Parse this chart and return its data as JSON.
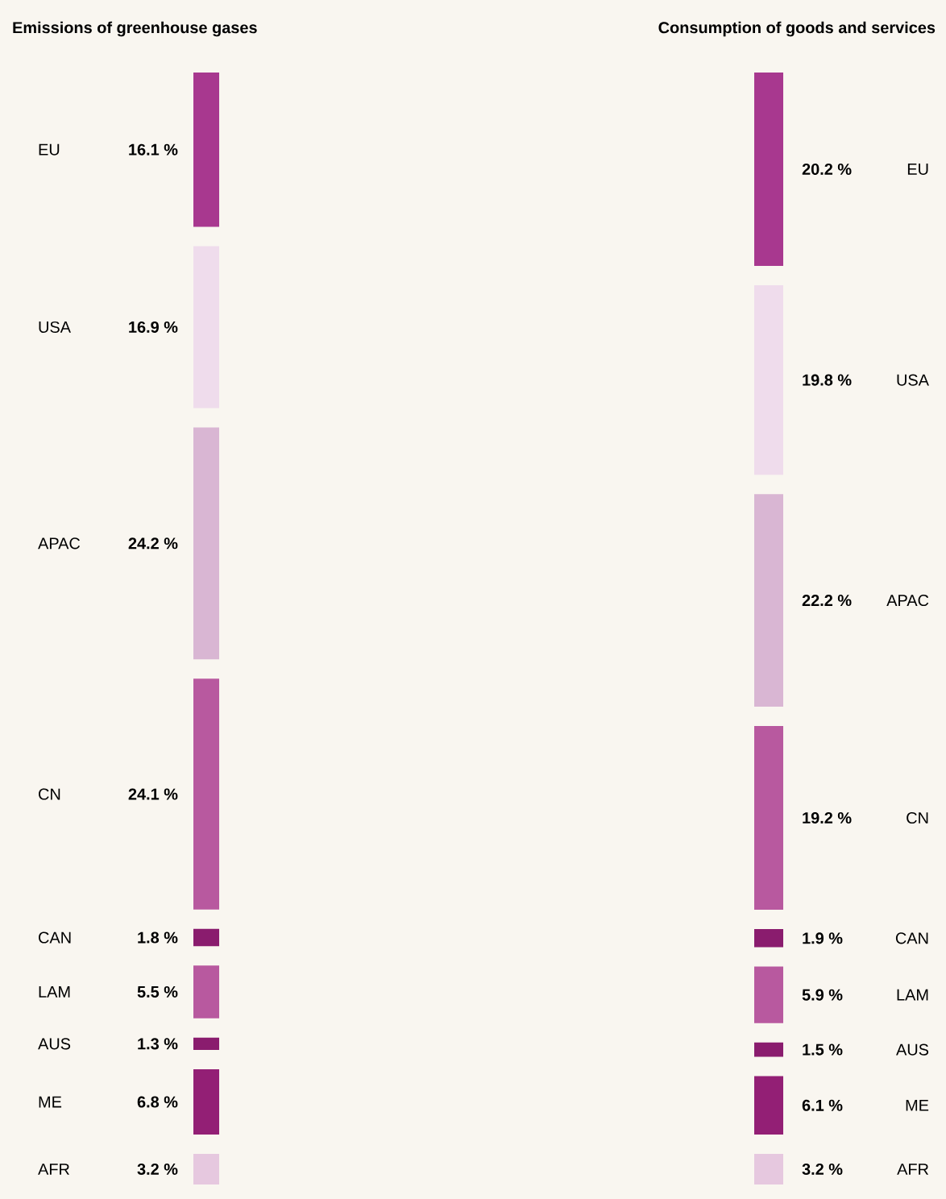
{
  "chart_data": {
    "type": "other",
    "categories": [
      "EU",
      "USA",
      "APAC",
      "CN",
      "CAN",
      "LAM",
      "AUS",
      "ME",
      "AFR"
    ],
    "colors": [
      "#a8388f",
      "#efdcec",
      "#d9b6d3",
      "#b8599f",
      "#8a1c6e",
      "#b8599f",
      "#8a1c6e",
      "#931f75",
      "#e6c8df"
    ],
    "series": [
      {
        "name": "Emissions of greenhouse gases",
        "values": [
          16.1,
          16.9,
          24.2,
          24.1,
          1.8,
          5.5,
          1.3,
          6.8,
          3.2
        ],
        "value_labels": [
          "16.1 %",
          "16.9 %",
          "24.2 %",
          "24.1 %",
          "1.8 %",
          "5.5 %",
          "1.3 %",
          "6.8 %",
          "3.2 %"
        ]
      },
      {
        "name": "Consumption of goods and services",
        "values": [
          20.2,
          19.8,
          22.2,
          19.2,
          1.9,
          5.9,
          1.5,
          6.1,
          3.2
        ],
        "value_labels": [
          "20.2 %",
          "19.8 %",
          "22.2 %",
          "19.2 %",
          "1.9 %",
          "5.9 %",
          "1.5 %",
          "6.1 %",
          "3.2 %"
        ]
      }
    ]
  }
}
